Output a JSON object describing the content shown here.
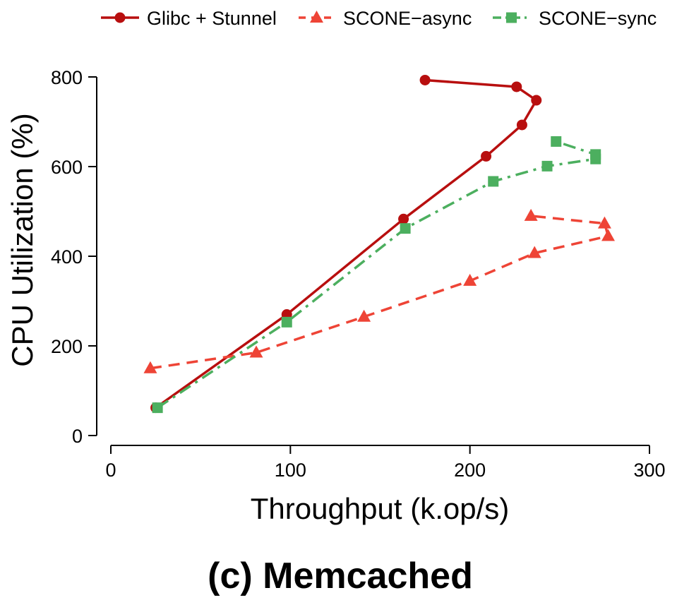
{
  "chart_data": {
    "type": "line",
    "title": "",
    "caption": "(c) Memcached",
    "xlabel": "Throughput (k.op/s)",
    "ylabel": "CPU Utilization (%)",
    "xlim": [
      0,
      300
    ],
    "ylim": [
      0,
      800
    ],
    "xticks": [
      "0",
      "100",
      "200",
      "300"
    ],
    "yticks": [
      "0",
      "200",
      "400",
      "600",
      "800"
    ],
    "grid": false,
    "legend_position": "top",
    "series": [
      {
        "name": "Glibc + Stunnel",
        "color": "#b80f0f",
        "marker": "circle",
        "line_style": "solid",
        "x": [
          25,
          98,
          163,
          209,
          229,
          237,
          226,
          175
        ],
        "y": [
          62,
          270,
          483,
          623,
          693,
          748,
          778,
          793
        ]
      },
      {
        "name": "SCONE−async",
        "color": "#ee4436",
        "marker": "triangle",
        "line_style": "dashed",
        "x": [
          22,
          81,
          141,
          200,
          236,
          277,
          275,
          234
        ],
        "y": [
          150,
          185,
          265,
          345,
          407,
          445,
          473,
          490
        ]
      },
      {
        "name": "SCONE−sync",
        "color": "#4caf5f",
        "marker": "square",
        "line_style": "dashdot",
        "x": [
          26,
          98,
          164,
          213,
          243,
          270,
          270,
          248
        ],
        "y": [
          62,
          253,
          462,
          567,
          601,
          617,
          627,
          656
        ]
      }
    ]
  }
}
